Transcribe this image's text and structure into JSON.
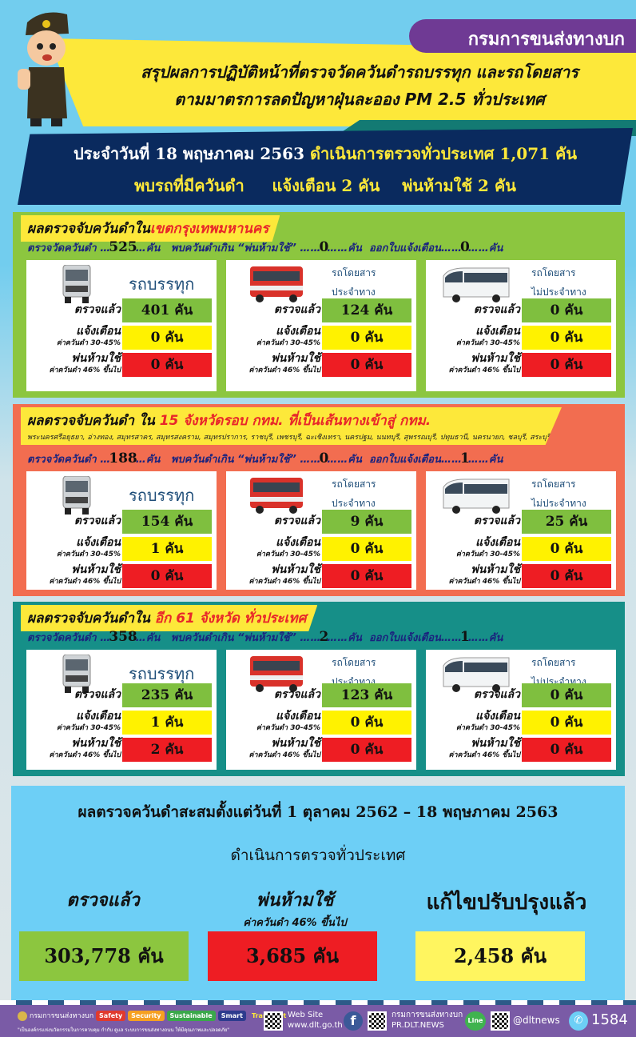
{
  "header": {
    "org": "กรมการขนส่งทางบก",
    "title_line1": "สรุปผลการปฏิบัติหน้าที่ตรวจวัดควันดำรถบรรทุก และรถโดยสาร",
    "title_line2": "ตามมาตรการลดปัญหาฝุ่นละออง PM 2.5 ทั่วประเทศ"
  },
  "daily": {
    "date_text": "ประจำวันที่ 18 พฤษภาคม 2563",
    "checked_text": "ดำเนินการตรวจทั่วประเทศ 1,071 คัน",
    "found_text": "พบรถที่มีควันดำ",
    "warn_text": "แจ้งเตือน 2  คัน",
    "prohibit_text": "พ่นห้ามใช้  2  คัน"
  },
  "labels": {
    "measured": "ตรวจวัดควันดำ …",
    "prohibit_found": "พบควันดำเกิน “พ่นห้ามใช้” …",
    "warn_issued": "ออกใบแจ้งเตือน…",
    "unit_dots": "…คัน",
    "checked": "ตรวจแล้ว",
    "warning": "แจ้งเตือน",
    "warning_sub": "ค่าควันดำ 30-45%",
    "prohibit": "พ่นห้ามใช้",
    "prohibit_sub": "ค่าควันดำ 46% ขึ้นไป",
    "unit": "คัน"
  },
  "vehicles": [
    {
      "name": "รถบรรทุก",
      "icon": "truck-icon"
    },
    {
      "name1": "รถโดยสาร",
      "name2": "ประจำทาง",
      "icon": "city-bus-icon"
    },
    {
      "name1": "รถโดยสาร",
      "name2": "ไม่ประจำทาง",
      "icon": "coach-bus-icon"
    }
  ],
  "sections": [
    {
      "title_prefix": "ผลตรวจจับควันดำใน",
      "title_highlight": "เขตกรุงเทพมหานคร",
      "color": "#8cc63f",
      "measured": "525",
      "prohibited": "0",
      "warned": "0",
      "cards": [
        {
          "checked": "401",
          "warning": "0",
          "prohibit": "0"
        },
        {
          "checked": "124",
          "warning": "0",
          "prohibit": "0"
        },
        {
          "checked": "0",
          "warning": "0",
          "prohibit": "0"
        }
      ]
    },
    {
      "title_prefix": "ผลตรวจจับควันดำ ใน ",
      "title_highlight": "15 จังหวัดรอบ กทม. ที่เป็นเส้นทางเข้าสู่ กทม.",
      "provinces": "พระนครศรีอยุธยา, อ่างทอง, สมุทรสาคร, สมุทรสงคราม, สมุทรปราการ, ราชบุรี, เพชรบุรี, ฉะเชิงเทรา, นครปฐม, นนทบุรี, สุพรรณบุรี, ปทุมธานี, นครนายก, ชลบุรี, สระบุรี",
      "color": "#f26d50",
      "measured": "188",
      "prohibited": "0",
      "warned": "1",
      "cards": [
        {
          "checked": "154",
          "warning": "1",
          "prohibit": "0"
        },
        {
          "checked": "9",
          "warning": "0",
          "prohibit": "0"
        },
        {
          "checked": "25",
          "warning": "0",
          "prohibit": "0"
        }
      ]
    },
    {
      "title_prefix": "ผลตรวจจับควันดำใน ",
      "title_highlight": "อีก 61 จังหวัด ทั่วประเทศ",
      "color": "#168f88",
      "measured": "358",
      "prohibited": "2",
      "warned": "1",
      "cards": [
        {
          "checked": "235",
          "warning": "1",
          "prohibit": "2"
        },
        {
          "checked": "123",
          "warning": "0",
          "prohibit": "0"
        },
        {
          "checked": "0",
          "warning": "0",
          "prohibit": "0"
        }
      ]
    }
  ],
  "summary": {
    "period": "ผลตรวจควันดำสะสมตั้งแต่วันที่  1 ตุลาคม 2562 – 18 พฤษภาคม 2563",
    "scope": "ดำเนินการตรวจทั่วประเทศ",
    "checked_label": "ตรวจแล้ว",
    "checked_value": "303,778 คัน",
    "prohibit_label": "พ่นห้ามใช้",
    "prohibit_sub": "ค่าควันดำ 46% ขึ้นไป",
    "prohibit_value": "3,685 คัน",
    "fixed_label": "แก้ไขปรับปรุงแล้ว",
    "fixed_value": "2,458 คัน"
  },
  "footer": {
    "org": "กรมการขนส่งทางบก",
    "tags": [
      "Safety",
      "Security",
      "Sustainable",
      "Smart",
      "Transport"
    ],
    "slogan": "\"เป็นองค์กรแห่งนวัตกรรมในการควบคุม กำกับ ดูแล ระบบการขนส่งทางถนน ให้มีคุณภาพและปลอดภัย\"",
    "website_label": "Web Site",
    "website": "www.dlt.go.th",
    "fb_name": "กรมการขนส่งทางบก",
    "fb_page": "PR.DLT.NEWS",
    "line_label": "Line",
    "line_id": "@dltnews",
    "hotline": "1584"
  },
  "colors": {
    "green": "#7fbf3f",
    "yellow": "#fff200",
    "red": "#ee1d23",
    "navy": "#0a2a5e",
    "purple": "#6f3a94"
  }
}
